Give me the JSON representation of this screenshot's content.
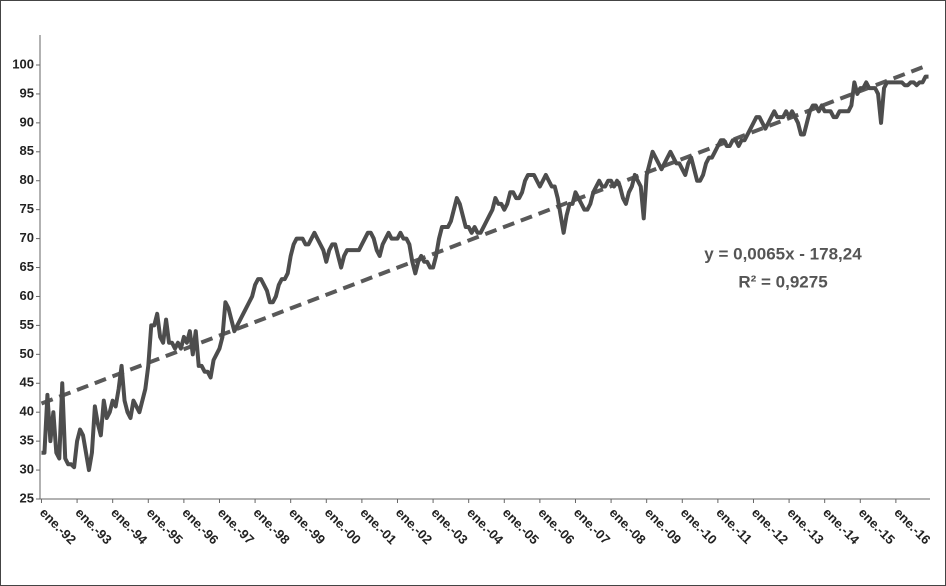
{
  "chart_data": {
    "type": "line",
    "categories": [
      "ene.-92",
      null,
      null,
      null,
      null,
      null,
      null,
      null,
      null,
      null,
      null,
      null,
      "ene.-93",
      null,
      null,
      null,
      null,
      null,
      null,
      null,
      null,
      null,
      null,
      null,
      "ene.-94",
      null,
      null,
      null,
      null,
      null,
      null,
      null,
      null,
      null,
      null,
      null,
      "ene.-95",
      null,
      null,
      null,
      null,
      null,
      null,
      null,
      null,
      null,
      null,
      null,
      "ene.-96",
      null,
      null,
      null,
      null,
      null,
      null,
      null,
      null,
      null,
      null,
      null,
      "ene.-97",
      null,
      null,
      null,
      null,
      null,
      null,
      null,
      null,
      null,
      null,
      null,
      "ene.-98",
      null,
      null,
      null,
      null,
      null,
      null,
      null,
      null,
      null,
      null,
      null,
      "ene.-99",
      null,
      null,
      null,
      null,
      null,
      null,
      null,
      null,
      null,
      null,
      null,
      "ene.-00",
      null,
      null,
      null,
      null,
      null,
      null,
      null,
      null,
      null,
      null,
      null,
      "ene.-01",
      null,
      null,
      null,
      null,
      null,
      null,
      null,
      null,
      null,
      null,
      null,
      "ene.-02",
      null,
      null,
      null,
      null,
      null,
      null,
      null,
      null,
      null,
      null,
      null,
      "ene.-03",
      null,
      null,
      null,
      null,
      null,
      null,
      null,
      null,
      null,
      null,
      null,
      "ene.-04",
      null,
      null,
      null,
      null,
      null,
      null,
      null,
      null,
      null,
      null,
      null,
      "ene.-05",
      null,
      null,
      null,
      null,
      null,
      null,
      null,
      null,
      null,
      null,
      null,
      "ene.-06",
      null,
      null,
      null,
      null,
      null,
      null,
      null,
      null,
      null,
      null,
      null,
      "ene.-07",
      null,
      null,
      null,
      null,
      null,
      null,
      null,
      null,
      null,
      null,
      null,
      "ene.-08",
      null,
      null,
      null,
      null,
      null,
      null,
      null,
      null,
      null,
      null,
      null,
      "ene.-09",
      null,
      null,
      null,
      null,
      null,
      null,
      null,
      null,
      null,
      null,
      null,
      "ene.-10",
      null,
      null,
      null,
      null,
      null,
      null,
      null,
      null,
      null,
      null,
      null,
      "ene.-11",
      null,
      null,
      null,
      null,
      null,
      null,
      null,
      null,
      null,
      null,
      null,
      "ene.-12",
      null,
      null,
      null,
      null,
      null,
      null,
      null,
      null,
      null,
      null,
      null,
      "ene.-13",
      null,
      null,
      null,
      null,
      null,
      null,
      null,
      null,
      null,
      null,
      null,
      "ene.-14",
      null,
      null,
      null,
      null,
      null,
      null,
      null,
      null,
      null,
      null,
      null,
      "ene.-15",
      null,
      null,
      null,
      null,
      null,
      null,
      null,
      null,
      null,
      null,
      null,
      "ene.-16",
      null,
      null,
      null,
      null,
      null,
      null,
      null,
      null,
      null,
      null,
      null
    ],
    "values": [
      33,
      33,
      43,
      35,
      40,
      33,
      32,
      45,
      32,
      31,
      31,
      30.5,
      35,
      37,
      36,
      33,
      30,
      33,
      41,
      38,
      36,
      42,
      39,
      40,
      42,
      41,
      44,
      48,
      42,
      40,
      39,
      42,
      41,
      40,
      42,
      44,
      48,
      55,
      55,
      57,
      53,
      52,
      56,
      52,
      52,
      51,
      52,
      51,
      53,
      52,
      54,
      50,
      54,
      48,
      48,
      47,
      47,
      46,
      49,
      50,
      51,
      53,
      59,
      58,
      56,
      54,
      55,
      56,
      57,
      58,
      59,
      60,
      62,
      63,
      63,
      62,
      61,
      59,
      59,
      60,
      62,
      63,
      63,
      64,
      67,
      69,
      70,
      70,
      70,
      69,
      69,
      70,
      71,
      70,
      69,
      68,
      66,
      68,
      69,
      69,
      67,
      65,
      67,
      68,
      68,
      68,
      68,
      68,
      69,
      70,
      71,
      71,
      70,
      68,
      67,
      69,
      70,
      71,
      70,
      70,
      70,
      71,
      70,
      70,
      69,
      66,
      64,
      66,
      67,
      66,
      66,
      65,
      65,
      67,
      70,
      72,
      72,
      72,
      73,
      75,
      77,
      76,
      74,
      72,
      72,
      71,
      72,
      71,
      71,
      72,
      73,
      74,
      75,
      77,
      76,
      76,
      75,
      76,
      78,
      78,
      77,
      77,
      78,
      80,
      81,
      81,
      81,
      80,
      79,
      80,
      81,
      80,
      79,
      79,
      77,
      74,
      71,
      74,
      76,
      76,
      78,
      77,
      76,
      75,
      75,
      76,
      78,
      79,
      80,
      79,
      79,
      80,
      80,
      79,
      80,
      79,
      77,
      76,
      78,
      79,
      81,
      80,
      79,
      73.5,
      81,
      83,
      85,
      84,
      83,
      82,
      83,
      84,
      85,
      84,
      83,
      83,
      82,
      81,
      83,
      84,
      82,
      80,
      80,
      81,
      83,
      84,
      84,
      85,
      86,
      87,
      87,
      86,
      86,
      87,
      87,
      86,
      87,
      87,
      88,
      89,
      90,
      91,
      91,
      90,
      89,
      90,
      91,
      92,
      91,
      91,
      91,
      92,
      91,
      92,
      91,
      90,
      88,
      88,
      90,
      92,
      93,
      93,
      92,
      93,
      92,
      92,
      92,
      91,
      91,
      92,
      92,
      92,
      92,
      93,
      97,
      95,
      96,
      96,
      97,
      96,
      96,
      96,
      95,
      90,
      96,
      97,
      97,
      97,
      97,
      97,
      97,
      96.5,
      96.5,
      97,
      97,
      96.5,
      97,
      97,
      98,
      98
    ],
    "color": "#4d4d4d",
    "trendline": {
      "start": 41.5,
      "end": 100,
      "color": "#595959",
      "equation": "y = 0,0065x - 178,24",
      "r_squared": "R² = 0,9275"
    },
    "ylim": [
      25,
      100
    ],
    "yticks": [
      25,
      30,
      35,
      40,
      45,
      50,
      55,
      60,
      65,
      70,
      75,
      80,
      85,
      90,
      95,
      100
    ],
    "grid": false
  }
}
